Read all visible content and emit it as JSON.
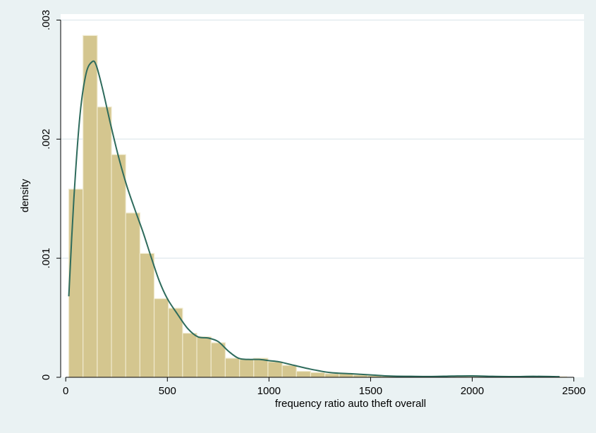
{
  "chart_data": {
    "type": "bar",
    "xlabel": "frequency ratio auto theft  overall",
    "ylabel": "density",
    "xlim": [
      -25,
      2550
    ],
    "ylim": [
      0,
      0.00305
    ],
    "x_ticks": [
      0,
      500,
      1000,
      1500,
      2000,
      2500
    ],
    "x_tick_labels": [
      "0",
      "500",
      "1000",
      "1500",
      "2000",
      "2500"
    ],
    "y_ticks": [
      0,
      0.001,
      0.002,
      0.003
    ],
    "y_tick_labels": [
      "0",
      ".001",
      ".002",
      ".003"
    ],
    "grid": true,
    "legend": "none",
    "bin_width": 70,
    "bin_start": 15,
    "bin_values": [
      0.00158,
      0.00287,
      0.00227,
      0.00187,
      0.00138,
      0.00104,
      0.00066,
      0.00058,
      0.00037,
      0.00034,
      0.00029,
      0.00016,
      0.00015,
      0.00016,
      0.00013,
      0.0001,
      5e-05,
      4e-05,
      3e-05,
      3e-05,
      2e-05,
      1.5e-05,
      1e-05,
      1e-05,
      8e-06,
      6e-06,
      6e-06,
      8e-06,
      5e-06,
      5e-06,
      4e-06,
      4e-06,
      4e-06,
      6e-06,
      4e-06
    ],
    "density_curve": {
      "x": [
        15,
        40,
        70,
        100,
        130,
        150,
        180,
        220,
        260,
        300,
        340,
        380,
        420,
        460,
        500,
        550,
        600,
        650,
        700,
        750,
        800,
        850,
        900,
        950,
        1000,
        1050,
        1100,
        1200,
        1300,
        1400,
        1500,
        1600,
        1700,
        1800,
        1900,
        2000,
        2100,
        2200,
        2300,
        2400,
        2430
      ],
      "y": [
        0.00068,
        0.0015,
        0.0022,
        0.00255,
        0.00265,
        0.00262,
        0.00243,
        0.00213,
        0.00185,
        0.00161,
        0.00141,
        0.00122,
        0.00101,
        0.00081,
        0.00066,
        0.00053,
        0.00041,
        0.00034,
        0.00033,
        0.0003,
        0.00022,
        0.00016,
        0.00015,
        0.00015,
        0.00014,
        0.00013,
        0.00011,
        7e-05,
        4e-05,
        3e-05,
        2e-05,
        1e-05,
        8e-06,
        7e-06,
        1e-05,
        1.2e-05,
        8e-06,
        6e-06,
        8e-06,
        6e-06,
        5e-06
      ]
    },
    "colors": {
      "background": "#eaf2f3",
      "plot_area": "#ffffff",
      "bar_fill": "#d4c68f",
      "bar_edge": "#efe9cd",
      "curve": "#2e6b5c",
      "grid": "#e4ecef",
      "axis": "#000000"
    }
  }
}
